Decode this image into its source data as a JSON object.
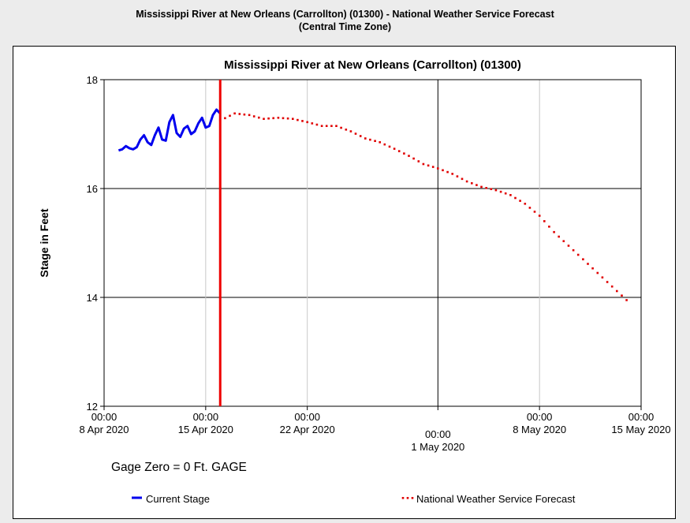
{
  "header": {
    "line1": "Mississippi River at New Orleans (Carrollton) (01300) - National Weather Service Forecast",
    "line2": "(Central Time Zone)"
  },
  "gage_note": "Gage Zero = 0 Ft. GAGE",
  "chart_data": {
    "type": "line",
    "title": "Mississippi River at New Orleans (Carrollton) (01300)",
    "xlabel": "",
    "ylabel": "Stage in Feet",
    "ylim": [
      12,
      18
    ],
    "yticks": [
      12,
      14,
      16,
      18
    ],
    "xlim": [
      "2020-04-08",
      "2020-05-15"
    ],
    "xticks": [
      {
        "x": "2020-04-08",
        "time": "00:00",
        "date": "8 Apr 2020"
      },
      {
        "x": "2020-04-15",
        "time": "00:00",
        "date": "15 Apr 2020"
      },
      {
        "x": "2020-04-22",
        "time": "00:00",
        "date": "22 Apr 2020"
      },
      {
        "x": "2020-05-01",
        "time": "00:00",
        "date": "1 May 2020"
      },
      {
        "x": "2020-05-08",
        "time": "00:00",
        "date": "8 May 2020"
      },
      {
        "x": "2020-05-15",
        "time": "00:00",
        "date": "15 May 2020"
      }
    ],
    "current_time": "2020-04-16",
    "grid": true,
    "legend_position": "bottom",
    "series": [
      {
        "name": "Current Stage",
        "style": "solid",
        "color": "#0000ee",
        "points": [
          [
            "2020-04-09 00:00",
            16.7
          ],
          [
            "2020-04-09 06:00",
            16.72
          ],
          [
            "2020-04-09 12:00",
            16.78
          ],
          [
            "2020-04-09 18:00",
            16.74
          ],
          [
            "2020-04-10 00:00",
            16.72
          ],
          [
            "2020-04-10 06:00",
            16.76
          ],
          [
            "2020-04-10 12:00",
            16.9
          ],
          [
            "2020-04-10 18:00",
            16.98
          ],
          [
            "2020-04-11 00:00",
            16.85
          ],
          [
            "2020-04-11 06:00",
            16.8
          ],
          [
            "2020-04-11 12:00",
            16.98
          ],
          [
            "2020-04-11 18:00",
            17.12
          ],
          [
            "2020-04-12 00:00",
            16.9
          ],
          [
            "2020-04-12 06:00",
            16.88
          ],
          [
            "2020-04-12 12:00",
            17.22
          ],
          [
            "2020-04-12 18:00",
            17.35
          ],
          [
            "2020-04-13 00:00",
            17.02
          ],
          [
            "2020-04-13 06:00",
            16.95
          ],
          [
            "2020-04-13 12:00",
            17.1
          ],
          [
            "2020-04-13 18:00",
            17.15
          ],
          [
            "2020-04-14 00:00",
            17.0
          ],
          [
            "2020-04-14 06:00",
            17.05
          ],
          [
            "2020-04-14 12:00",
            17.2
          ],
          [
            "2020-04-14 18:00",
            17.3
          ],
          [
            "2020-04-15 00:00",
            17.12
          ],
          [
            "2020-04-15 06:00",
            17.15
          ],
          [
            "2020-04-15 12:00",
            17.35
          ],
          [
            "2020-04-15 18:00",
            17.45
          ],
          [
            "2020-04-16 00:00",
            17.38
          ]
        ]
      },
      {
        "name": "National Weather Service Forecast",
        "style": "dotted",
        "color": "#e00000",
        "points": [
          [
            "2020-04-16 00:00",
            17.25
          ],
          [
            "2020-04-17 00:00",
            17.38
          ],
          [
            "2020-04-18 00:00",
            17.35
          ],
          [
            "2020-04-19 00:00",
            17.28
          ],
          [
            "2020-04-20 00:00",
            17.3
          ],
          [
            "2020-04-21 00:00",
            17.28
          ],
          [
            "2020-04-22 00:00",
            17.22
          ],
          [
            "2020-04-23 00:00",
            17.15
          ],
          [
            "2020-04-24 00:00",
            17.15
          ],
          [
            "2020-04-25 00:00",
            17.05
          ],
          [
            "2020-04-26 00:00",
            16.92
          ],
          [
            "2020-04-27 00:00",
            16.85
          ],
          [
            "2020-04-28 00:00",
            16.73
          ],
          [
            "2020-04-29 00:00",
            16.6
          ],
          [
            "2020-04-30 00:00",
            16.45
          ],
          [
            "2020-05-01 00:00",
            16.37
          ],
          [
            "2020-05-02 00:00",
            16.27
          ],
          [
            "2020-05-03 00:00",
            16.13
          ],
          [
            "2020-05-04 00:00",
            16.03
          ],
          [
            "2020-05-05 00:00",
            15.97
          ],
          [
            "2020-05-06 00:00",
            15.88
          ],
          [
            "2020-05-07 00:00",
            15.72
          ],
          [
            "2020-05-08 00:00",
            15.5
          ],
          [
            "2020-05-09 00:00",
            15.2
          ],
          [
            "2020-05-10 00:00",
            14.95
          ],
          [
            "2020-05-11 00:00",
            14.7
          ],
          [
            "2020-05-12 00:00",
            14.45
          ],
          [
            "2020-05-13 00:00",
            14.2
          ],
          [
            "2020-05-14 00:00",
            13.95
          ]
        ]
      }
    ]
  }
}
